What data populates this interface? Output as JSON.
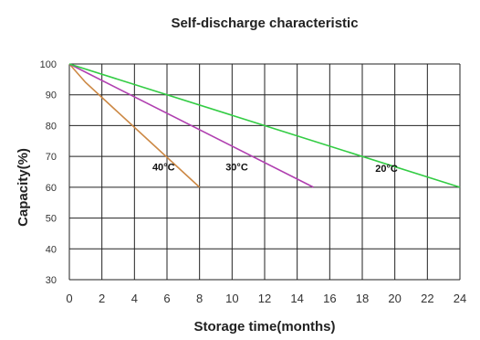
{
  "chart_data": {
    "type": "line",
    "title": "Self-discharge characteristic",
    "xlabel": "Storage time(months)",
    "ylabel": "Capacity(%)",
    "xlim": [
      0,
      24
    ],
    "ylim": [
      30,
      100
    ],
    "xticks": [
      0,
      2,
      4,
      6,
      8,
      10,
      12,
      14,
      16,
      18,
      20,
      22,
      24
    ],
    "yticks": [
      30,
      40,
      50,
      60,
      70,
      80,
      90,
      100
    ],
    "grid": true,
    "series": [
      {
        "name": "40°C",
        "color": "#cc8844",
        "x": [
          0,
          1,
          8
        ],
        "y": [
          100,
          94,
          60
        ],
        "label_at": [
          5.1,
          65.5
        ]
      },
      {
        "name": "30°C",
        "color": "#b03fb0",
        "x": [
          0,
          15
        ],
        "y": [
          100,
          60
        ],
        "label_at": [
          9.6,
          65.5
        ]
      },
      {
        "name": "20°C",
        "color": "#33cc44",
        "x": [
          0,
          24
        ],
        "y": [
          100,
          60
        ],
        "label_at": [
          18.8,
          65.0
        ]
      }
    ]
  }
}
